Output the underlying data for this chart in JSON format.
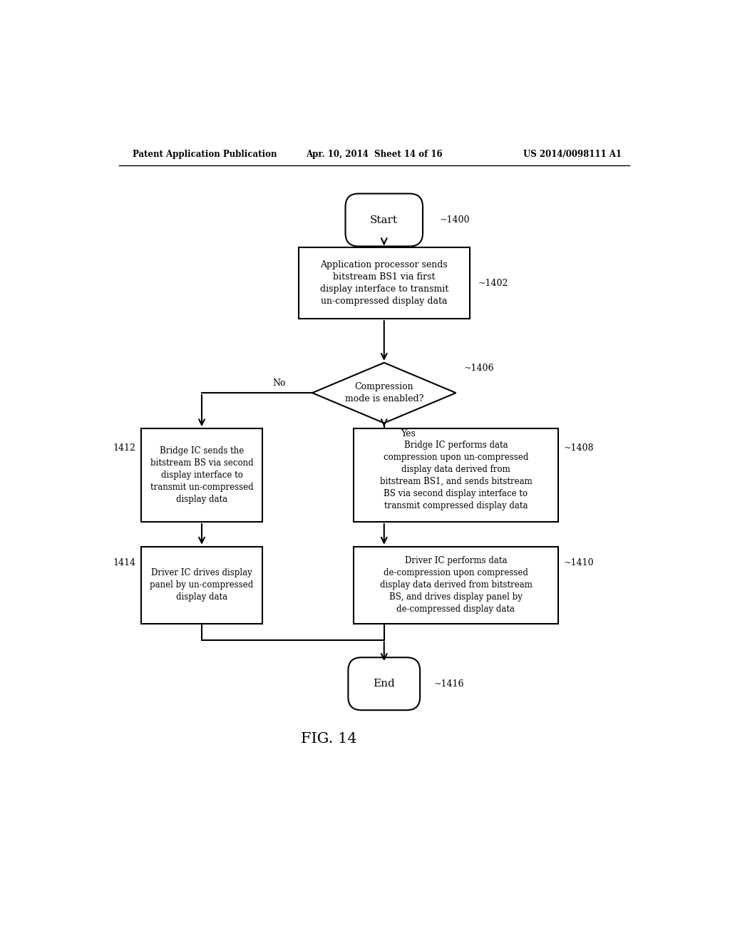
{
  "bg_color": "#ffffff",
  "header_left": "Patent Application Publication",
  "header_center": "Apr. 10, 2014  Sheet 14 of 16",
  "header_right": "US 2014/0098111 A1",
  "fig_label": "FIG. 14",
  "start_label": "Start",
  "start_ref": "~1400",
  "box1_text": "Application processor sends\nbitstream BS1 via first\ndisplay interface to transmit\nun-compressed display data",
  "box1_ref": "~1402",
  "diamond_text": "Compression\nmode is enabled?",
  "diamond_ref": "~1406",
  "no_label": "No",
  "yes_label": "Yes",
  "box_left_text": "Bridge IC sends the\nbitstream BS via second\ndisplay interface to\ntransmit un-compressed\ndisplay data",
  "box_left_ref": "1412",
  "box_right_text": "Bridge IC performs data\ncompression upon un-compressed\ndisplay data derived from\nbitstream BS1, and sends bitstream\nBS via second display interface to\ntransmit compressed display data",
  "box_right_ref": "~1408",
  "box_bl_text": "Driver IC drives display\npanel by un-compressed\ndisplay data",
  "box_bl_ref": "1414",
  "box_br_text": "Driver IC performs data\nde-compression upon compressed\ndisplay data derived from bitstream\nBS, and drives display panel by\nde-compressed display data",
  "box_br_ref": "~1410",
  "end_label": "End",
  "end_ref": "~1416"
}
